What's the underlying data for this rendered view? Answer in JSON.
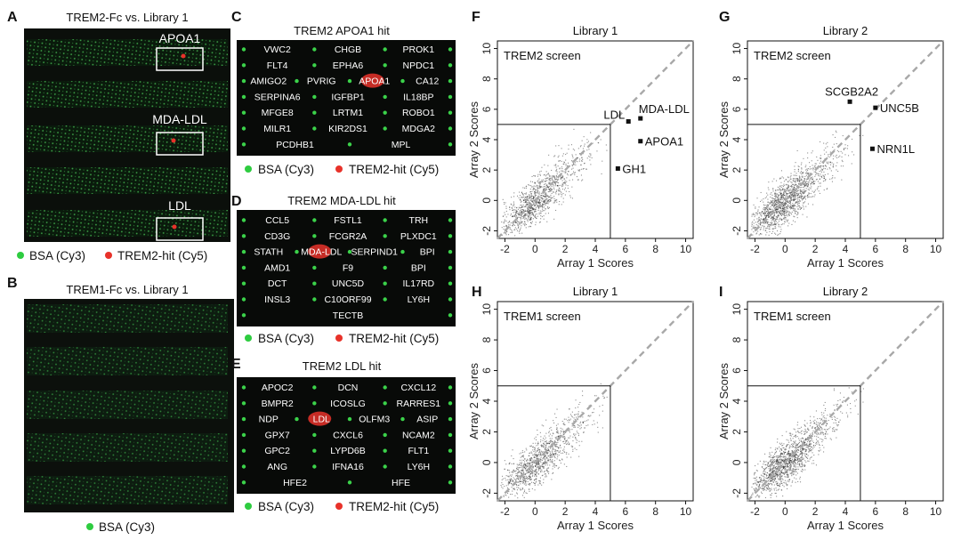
{
  "panel_a": {
    "letter": "A",
    "title": "TREM2-Fc vs. Library 1",
    "boxes": [
      "APOA1",
      "MDA-LDL",
      "LDL"
    ],
    "legend": [
      {
        "label": "BSA (Cy3)",
        "color": "#2ecc40"
      },
      {
        "label": "TREM2-hit (Cy5)",
        "color": "#e8322a"
      }
    ]
  },
  "panel_b": {
    "letter": "B",
    "title": "TREM1-Fc vs. Library 1",
    "legend": [
      {
        "label": "BSA (Cy3)",
        "color": "#2ecc40"
      }
    ]
  },
  "panel_c": {
    "letter": "C",
    "title": "TREM2 APOA1 hit",
    "rows": [
      [
        "VWC2",
        "CHGB",
        "PROK1"
      ],
      [
        "FLT4",
        "EPHA6",
        "NPDC1"
      ],
      [
        "AMIGO2",
        "PVRIG",
        "APOA1",
        "CA12"
      ],
      [
        "SERPINA6",
        "IGFBP1",
        "IL18BP"
      ],
      [
        "MFGE8",
        "LRTM1",
        "ROBO1"
      ],
      [
        "MILR1",
        "KIR2DS1",
        "MDGA2"
      ],
      [
        "PCDHB1",
        "MPL"
      ]
    ],
    "hit": "APOA1"
  },
  "panel_d": {
    "letter": "D",
    "title": "TREM2 MDA-LDL hit",
    "rows": [
      [
        "CCL5",
        "FSTL1",
        "TRH"
      ],
      [
        "CD3G",
        "FCGR2A",
        "PLXDC1"
      ],
      [
        "STATH",
        "MDA-LDL",
        "SERPIND1",
        "BPI"
      ],
      [
        "AMD1",
        "F9",
        "BPI"
      ],
      [
        "DCT",
        "UNC5D",
        "IL17RD"
      ],
      [
        "INSL3",
        "C10ORF99",
        "LY6H"
      ],
      [
        "TECTB"
      ]
    ],
    "hit": "MDA-LDL"
  },
  "panel_e": {
    "letter": "E",
    "title": "TREM2 LDL hit",
    "rows": [
      [
        "APOC2",
        "DCN",
        "CXCL12"
      ],
      [
        "BMPR2",
        "ICOSLG",
        "RARRES1"
      ],
      [
        "NDP",
        "LDL",
        "OLFM3",
        "ASIP"
      ],
      [
        "GPX7",
        "CXCL6",
        "NCAM2"
      ],
      [
        "GPC2",
        "LYPD6B",
        "FLT1"
      ],
      [
        "ANG",
        "IFNA16",
        "LY6H"
      ],
      [
        "HFE2",
        "HFE"
      ]
    ],
    "hit": "LDL"
  },
  "cde_legend": [
    {
      "label": "BSA (Cy3)",
      "color": "#2ecc40"
    },
    {
      "label": "TREM2-hit (Cy5)",
      "color": "#e8322a"
    }
  ],
  "chart_data": [
    {
      "panel": "F",
      "type": "scatter",
      "title": "Library 1",
      "subtitle": "TREM2 screen",
      "xlabel": "Array 1 Scores",
      "ylabel": "Array 2 Scores",
      "xlim": [
        -2.5,
        10.5
      ],
      "ylim": [
        -2.5,
        10.5
      ],
      "xticks": [
        -2,
        0,
        2,
        4,
        6,
        8,
        10
      ],
      "yticks": [
        -2,
        0,
        2,
        4,
        6,
        8,
        10
      ],
      "threshold": 5,
      "diagonal": true,
      "hits": [
        {
          "label": "LDL",
          "x": 6.2,
          "y": 5.2
        },
        {
          "label": "MDA-LDL",
          "x": 7.0,
          "y": 5.4
        },
        {
          "label": "APOA1",
          "x": 7.0,
          "y": 3.9
        },
        {
          "label": "GH1",
          "x": 5.5,
          "y": 2.1
        }
      ]
    },
    {
      "panel": "G",
      "type": "scatter",
      "title": "Library 2",
      "subtitle": "TREM2 screen",
      "xlabel": "Array 1 Scores",
      "ylabel": "Array 2 Scores",
      "xlim": [
        -2.5,
        10.5
      ],
      "ylim": [
        -2.5,
        10.5
      ],
      "xticks": [
        -2,
        0,
        2,
        4,
        6,
        8,
        10
      ],
      "yticks": [
        -2,
        0,
        2,
        4,
        6,
        8,
        10
      ],
      "threshold": 5,
      "diagonal": true,
      "hits": [
        {
          "label": "SCGB2A2",
          "x": 4.3,
          "y": 6.5
        },
        {
          "label": "UNC5B",
          "x": 6.0,
          "y": 6.1
        },
        {
          "label": "NRN1L",
          "x": 5.8,
          "y": 3.4
        }
      ]
    },
    {
      "panel": "H",
      "type": "scatter",
      "title": "Library 1",
      "subtitle": "TREM1 screen",
      "xlabel": "Array 1 Scores",
      "ylabel": "Array 2 Scores",
      "xlim": [
        -2.5,
        10.5
      ],
      "ylim": [
        -2.5,
        10.5
      ],
      "xticks": [
        -2,
        0,
        2,
        4,
        6,
        8,
        10
      ],
      "yticks": [
        -2,
        0,
        2,
        4,
        6,
        8,
        10
      ],
      "threshold": 5,
      "diagonal": true,
      "hits": []
    },
    {
      "panel": "I",
      "type": "scatter",
      "title": "Library 2",
      "subtitle": "TREM1 screen",
      "xlabel": "Array 1 Scores",
      "ylabel": "Array 2 Scores",
      "xlim": [
        -2.5,
        10.5
      ],
      "ylim": [
        -2.5,
        10.5
      ],
      "xticks": [
        -2,
        0,
        2,
        4,
        6,
        8,
        10
      ],
      "yticks": [
        -2,
        0,
        2,
        4,
        6,
        8,
        10
      ],
      "threshold": 5,
      "diagonal": true,
      "hits": []
    }
  ]
}
